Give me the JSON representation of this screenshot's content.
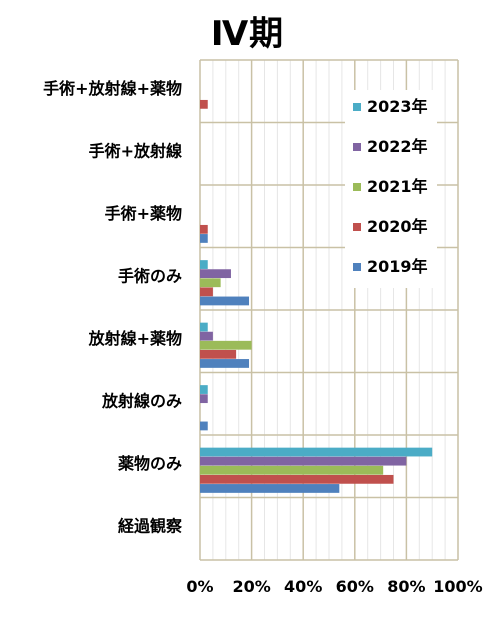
{
  "chart_data": {
    "type": "bar",
    "orientation": "horizontal",
    "title": "Ⅳ期",
    "categories": [
      "手術+放射線+薬物",
      "手術+放射線",
      "手術+薬物",
      "手術のみ",
      "放射線+薬物",
      "放射線のみ",
      "薬物のみ",
      "経過観察"
    ],
    "series": [
      {
        "name": "2023年",
        "color": "#4bacc6",
        "values": [
          0,
          0,
          0,
          3,
          3,
          3,
          90,
          0
        ]
      },
      {
        "name": "2022年",
        "color": "#8064a2",
        "values": [
          0,
          0,
          0,
          12,
          5,
          3,
          80,
          0
        ]
      },
      {
        "name": "2021年",
        "color": "#9bbb59",
        "values": [
          0,
          0,
          0,
          8,
          20,
          0,
          71,
          0
        ]
      },
      {
        "name": "2020年",
        "color": "#c0504d",
        "values": [
          3,
          0,
          3,
          5,
          14,
          0,
          75,
          0
        ]
      },
      {
        "name": "2019年",
        "color": "#4f81bd",
        "values": [
          0,
          0,
          3,
          19,
          19,
          3,
          54,
          0
        ]
      }
    ],
    "xlim": [
      0,
      100
    ],
    "xticks": [
      "0%",
      "20%",
      "40%",
      "60%",
      "80%",
      "100%"
    ],
    "grid": true,
    "legend_position": "upper-right",
    "legend_order": [
      "2023年",
      "2022年",
      "2021年",
      "2020年",
      "2019年"
    ]
  }
}
